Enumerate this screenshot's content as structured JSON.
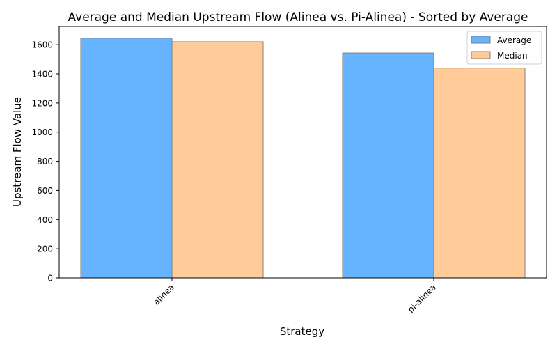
{
  "chart_data": {
    "type": "bar",
    "title": "Average and Median Upstream Flow (Alinea vs. Pi-Alinea) - Sorted by Average",
    "xlabel": "Strategy",
    "ylabel": "Upstream Flow Value",
    "categories": [
      "alinea",
      "pi-alinea"
    ],
    "series": [
      {
        "name": "Average",
        "values": [
          1645,
          1543
        ],
        "color": "#66b3ff"
      },
      {
        "name": "Median",
        "values": [
          1620,
          1440
        ],
        "color": "#ffcc99"
      }
    ],
    "ylim": [
      0,
      1725
    ],
    "yticks": [
      0,
      200,
      400,
      600,
      800,
      1000,
      1200,
      1400,
      1600
    ],
    "grid": false,
    "legend_position": "top-right",
    "bar_edge_color": "#808080"
  }
}
